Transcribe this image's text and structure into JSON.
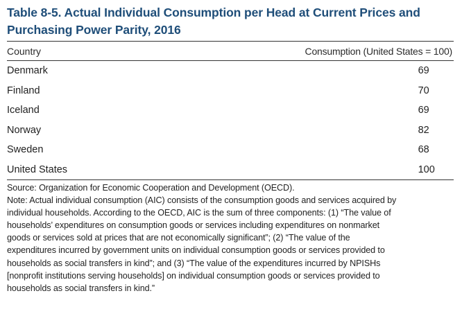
{
  "table": {
    "title_line1": "Table 8-5. Actual Individual Consumption per Head at Current Prices and",
    "title_line2": "Purchasing Power Parity, 2016",
    "headers": {
      "country": "Country",
      "consumption": "Consumption (United States = 100)"
    },
    "rows": [
      {
        "country": "Denmark",
        "value": "69"
      },
      {
        "country": "Finland",
        "value": "70"
      },
      {
        "country": "Iceland",
        "value": "69"
      },
      {
        "country": "Norway",
        "value": "82"
      },
      {
        "country": "Sweden",
        "value": "68"
      },
      {
        "country": "United States",
        "value": "100"
      }
    ]
  },
  "footnotes": {
    "source": "Source: Organization for Economic Cooperation and Development (OECD).",
    "note_lines": [
      "Note: Actual individual consumption (AIC) consists of the consumption goods and services acquired by",
      "individual households. According to the OECD, AIC is the sum of three components: (1) “The value of",
      "households’ expenditures on consumption goods or services including expenditures on nonmarket",
      "goods or services sold at prices that are not economically significant”; (2) “The value of the",
      "expenditures incurred by government units on individual consumption goods or services provided to",
      "households as social transfers in kind”; and (3) “The value of the expenditures incurred by NPISHs",
      "[nonprofit institutions serving households] on individual consumption goods or services provided to",
      "households as social transfers in kind.”"
    ]
  },
  "colors": {
    "title": "#1f4e79",
    "rule": "#333333"
  }
}
